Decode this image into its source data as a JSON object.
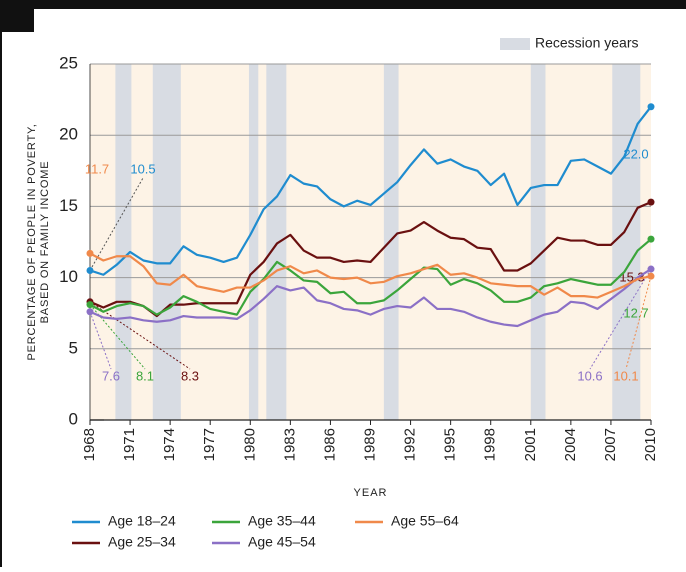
{
  "chart_data": {
    "type": "line",
    "xlabel": "YEAR",
    "ylabel": [
      "PERCENTAGE OF PEOPLE IN POVERTY,",
      "BASED ON FAMILY INCOME"
    ],
    "x": [
      1968,
      1969,
      1970,
      1971,
      1972,
      1973,
      1974,
      1975,
      1976,
      1977,
      1978,
      1979,
      1980,
      1981,
      1982,
      1983,
      1984,
      1985,
      1986,
      1987,
      1988,
      1989,
      1990,
      1991,
      1992,
      1993,
      1994,
      1995,
      1996,
      1997,
      1998,
      1999,
      2000,
      2001,
      2002,
      2003,
      2004,
      2005,
      2006,
      2007,
      2008,
      2009,
      2010
    ],
    "xlim": [
      1968,
      2010
    ],
    "xticks": [
      1968,
      1971,
      1974,
      1977,
      1980,
      1983,
      1986,
      1989,
      1992,
      1995,
      1998,
      2001,
      2004,
      2007,
      2010
    ],
    "ylim": [
      0,
      25
    ],
    "yticks": [
      0,
      5,
      10,
      15,
      20,
      25
    ],
    "grid": true,
    "background": "#fdf3e6",
    "recession_label": "Recession years",
    "recession_color": "#d8dce3",
    "recessions": [
      [
        1969.9,
        1971.1
      ],
      [
        1972.7,
        1974.8
      ],
      [
        1979.9,
        1980.6
      ],
      [
        1981.2,
        1982.7
      ],
      [
        1990.0,
        1991.1
      ],
      [
        2001.0,
        2002.1
      ],
      [
        2007.1,
        2009.2
      ]
    ],
    "series": [
      {
        "name": "Age 18–24",
        "color": "#1f8ccf",
        "values": [
          10.5,
          10.2,
          10.9,
          11.8,
          11.2,
          11.0,
          11.0,
          12.2,
          11.6,
          11.4,
          11.1,
          11.4,
          13.0,
          14.8,
          15.7,
          17.2,
          16.6,
          16.4,
          15.5,
          15.0,
          15.4,
          15.1,
          15.9,
          16.7,
          17.9,
          19.0,
          18.0,
          18.3,
          17.8,
          17.5,
          16.5,
          17.3,
          15.1,
          16.3,
          16.5,
          16.5,
          18.2,
          18.3,
          17.8,
          17.3,
          18.5,
          20.8,
          22.0
        ],
        "value_labels": [
          "10.5",
          null,
          null,
          null,
          null,
          null,
          null,
          null,
          null,
          null,
          null,
          null,
          null,
          null,
          null,
          null,
          null,
          null,
          null,
          null,
          null,
          null,
          null,
          null,
          null,
          null,
          null,
          null,
          null,
          null,
          null,
          null,
          null,
          null,
          null,
          null,
          null,
          null,
          null,
          null,
          null,
          null,
          "22.0"
        ]
      },
      {
        "name": "Age 25–34",
        "color": "#6a1010",
        "values": [
          8.3,
          7.9,
          8.3,
          8.3,
          8.0,
          7.3,
          8.1,
          8.1,
          8.2,
          8.2,
          8.2,
          8.2,
          10.2,
          11.1,
          12.4,
          13.0,
          11.9,
          11.4,
          11.4,
          11.1,
          11.2,
          11.1,
          12.1,
          13.1,
          13.3,
          13.9,
          13.3,
          12.8,
          12.7,
          12.1,
          12.0,
          10.5,
          10.5,
          11.0,
          11.9,
          12.8,
          12.6,
          12.6,
          12.3,
          12.3,
          13.2,
          14.9,
          15.3
        ],
        "value_labels": [
          "8.3",
          null,
          null,
          null,
          null,
          null,
          null,
          null,
          null,
          null,
          null,
          null,
          null,
          null,
          null,
          null,
          null,
          null,
          null,
          null,
          null,
          null,
          null,
          null,
          null,
          null,
          null,
          null,
          null,
          null,
          null,
          null,
          null,
          null,
          null,
          null,
          null,
          null,
          null,
          null,
          null,
          null,
          "15.3"
        ]
      },
      {
        "name": "Age 35–44",
        "color": "#3ba53b",
        "values": [
          8.1,
          7.6,
          8.0,
          8.2,
          8.0,
          7.4,
          7.9,
          8.7,
          8.3,
          7.8,
          7.6,
          7.4,
          9.0,
          9.9,
          11.1,
          10.5,
          9.8,
          9.7,
          8.9,
          9.0,
          8.2,
          8.2,
          8.4,
          9.1,
          9.9,
          10.7,
          10.6,
          9.5,
          9.9,
          9.6,
          9.1,
          8.3,
          8.3,
          8.6,
          9.4,
          9.6,
          9.9,
          9.7,
          9.5,
          9.5,
          10.4,
          11.9,
          12.7
        ],
        "value_labels": [
          "8.1",
          null,
          null,
          null,
          null,
          null,
          null,
          null,
          null,
          null,
          null,
          null,
          null,
          null,
          null,
          null,
          null,
          null,
          null,
          null,
          null,
          null,
          null,
          null,
          null,
          null,
          null,
          null,
          null,
          null,
          null,
          null,
          null,
          null,
          null,
          null,
          null,
          null,
          null,
          null,
          null,
          null,
          "12.7"
        ]
      },
      {
        "name": "Age 45–54",
        "color": "#8b70c6",
        "values": [
          7.6,
          7.2,
          7.1,
          7.2,
          7.0,
          6.9,
          7.0,
          7.3,
          7.2,
          7.2,
          7.2,
          7.1,
          7.7,
          8.5,
          9.4,
          9.1,
          9.3,
          8.4,
          8.2,
          7.8,
          7.7,
          7.4,
          7.8,
          8.0,
          7.9,
          8.6,
          7.8,
          7.8,
          7.6,
          7.2,
          6.9,
          6.7,
          6.6,
          7.0,
          7.4,
          7.6,
          8.3,
          8.2,
          7.8,
          8.5,
          9.2,
          10.0,
          10.6
        ],
        "value_labels": [
          "7.6",
          null,
          null,
          null,
          null,
          null,
          null,
          null,
          null,
          null,
          null,
          null,
          null,
          null,
          null,
          null,
          null,
          null,
          null,
          null,
          null,
          null,
          null,
          null,
          null,
          null,
          null,
          null,
          null,
          null,
          null,
          null,
          null,
          null,
          null,
          null,
          null,
          null,
          null,
          null,
          null,
          null,
          "10.6"
        ]
      },
      {
        "name": "Age 55–64",
        "color": "#f0894a",
        "values": [
          11.7,
          11.2,
          11.5,
          11.5,
          10.8,
          9.6,
          9.5,
          10.2,
          9.4,
          9.2,
          9.0,
          9.3,
          9.3,
          9.8,
          10.5,
          10.8,
          10.3,
          10.5,
          10.0,
          9.9,
          10.0,
          9.6,
          9.7,
          10.1,
          10.3,
          10.6,
          10.9,
          10.2,
          10.3,
          10.0,
          9.6,
          9.5,
          9.4,
          9.4,
          8.8,
          9.3,
          8.7,
          8.7,
          8.6,
          9.0,
          9.4,
          9.9,
          10.1
        ],
        "value_labels": [
          "11.7",
          null,
          null,
          null,
          null,
          null,
          null,
          null,
          null,
          null,
          null,
          null,
          null,
          null,
          null,
          null,
          null,
          null,
          null,
          null,
          null,
          null,
          null,
          null,
          null,
          null,
          null,
          null,
          null,
          null,
          null,
          null,
          null,
          null,
          null,
          null,
          null,
          null,
          null,
          null,
          null,
          null,
          "10.1"
        ]
      }
    ]
  }
}
